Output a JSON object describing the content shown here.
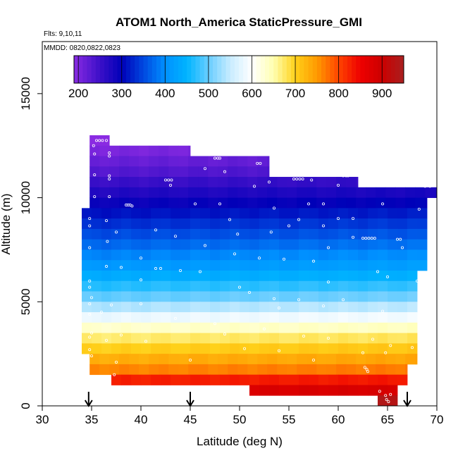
{
  "chart_data": {
    "type": "heatmap",
    "title": "ATOM1 North_America StaticPressure_GMI",
    "flights_label": "Flts: 9,10,11",
    "dates_label": "MMDD: 0820,0822,0823",
    "xlabel": "Latitude (deg N)",
    "ylabel": "Altitude (m)",
    "xlim": [
      30,
      70
    ],
    "ylim": [
      0,
      17500
    ],
    "x_ticks": [
      "30",
      "35",
      "40",
      "45",
      "50",
      "55",
      "60",
      "65",
      "70"
    ],
    "y_ticks": [
      "0",
      "5000",
      "10000",
      "15000"
    ],
    "colorbar": {
      "min": 190,
      "max": 950,
      "ticks": [
        "200",
        "300",
        "400",
        "500",
        "600",
        "700",
        "800",
        "900"
      ],
      "stops": [
        {
          "v": 190,
          "color": "#8a2be2"
        },
        {
          "v": 250,
          "color": "#3b0fc8"
        },
        {
          "v": 300,
          "color": "#0000b8"
        },
        {
          "v": 350,
          "color": "#0048e0"
        },
        {
          "v": 400,
          "color": "#0090ff"
        },
        {
          "v": 450,
          "color": "#00b4ff"
        },
        {
          "v": 500,
          "color": "#68cdff"
        },
        {
          "v": 550,
          "color": "#c8ecff"
        },
        {
          "v": 600,
          "color": "#ffffff"
        },
        {
          "v": 650,
          "color": "#ffffb0"
        },
        {
          "v": 700,
          "color": "#ffd11a"
        },
        {
          "v": 750,
          "color": "#ff9900"
        },
        {
          "v": 800,
          "color": "#ff4400"
        },
        {
          "v": 850,
          "color": "#ee0000"
        },
        {
          "v": 900,
          "color": "#cc0000"
        },
        {
          "v": 950,
          "color": "#a82020"
        }
      ]
    },
    "rows": [
      {
        "alt0": 12500,
        "alt1": 13000,
        "lat0": 34.8,
        "lat1": 36.8,
        "value": 190
      },
      {
        "alt0": 12000,
        "alt1": 12500,
        "lat0": 34.8,
        "lat1": 45.0,
        "value": 205
      },
      {
        "alt0": 11500,
        "alt1": 12000,
        "lat0": 34.8,
        "lat1": 53.0,
        "value": 220
      },
      {
        "alt0": 11000,
        "alt1": 11500,
        "lat0": 34.8,
        "lat1": 53.0,
        "value": 235
      },
      {
        "alt0": 10500,
        "alt1": 11000,
        "lat0": 34.8,
        "lat1": 62.0,
        "value": 255
      },
      {
        "alt0": 10000,
        "alt1": 10500,
        "lat0": 34.8,
        "lat1": 70.0,
        "value": 275
      },
      {
        "alt0": 9500,
        "alt1": 10000,
        "lat0": 34.8,
        "lat1": 69.0,
        "value": 295
      },
      {
        "alt0": 9000,
        "alt1": 9500,
        "lat0": 34.0,
        "lat1": 69.0,
        "value": 315
      },
      {
        "alt0": 8500,
        "alt1": 9000,
        "lat0": 34.0,
        "lat1": 69.0,
        "value": 335
      },
      {
        "alt0": 8000,
        "alt1": 8500,
        "lat0": 34.0,
        "lat1": 69.0,
        "value": 355
      },
      {
        "alt0": 7500,
        "alt1": 8000,
        "lat0": 34.0,
        "lat1": 69.0,
        "value": 375
      },
      {
        "alt0": 7000,
        "alt1": 7500,
        "lat0": 34.0,
        "lat1": 69.0,
        "value": 395
      },
      {
        "alt0": 6500,
        "alt1": 7000,
        "lat0": 34.0,
        "lat1": 69.0,
        "value": 415
      },
      {
        "alt0": 6000,
        "alt1": 6500,
        "lat0": 34.0,
        "lat1": 68.0,
        "value": 440
      },
      {
        "alt0": 5500,
        "alt1": 6000,
        "lat0": 34.0,
        "lat1": 68.0,
        "value": 470
      },
      {
        "alt0": 5000,
        "alt1": 5500,
        "lat0": 34.0,
        "lat1": 68.0,
        "value": 500
      },
      {
        "alt0": 4500,
        "alt1": 5000,
        "lat0": 34.0,
        "lat1": 68.0,
        "value": 540
      },
      {
        "alt0": 4000,
        "alt1": 4500,
        "lat0": 34.0,
        "lat1": 68.0,
        "value": 585
      },
      {
        "alt0": 3500,
        "alt1": 4000,
        "lat0": 34.0,
        "lat1": 68.0,
        "value": 635
      },
      {
        "alt0": 3000,
        "alt1": 3500,
        "lat0": 34.0,
        "lat1": 68.0,
        "value": 675
      },
      {
        "alt0": 2500,
        "alt1": 3000,
        "lat0": 34.0,
        "lat1": 68.0,
        "value": 705
      },
      {
        "alt0": 2000,
        "alt1": 2500,
        "lat0": 34.8,
        "lat1": 68.0,
        "value": 735
      },
      {
        "alt0": 1500,
        "alt1": 2000,
        "lat0": 34.8,
        "lat1": 67.0,
        "value": 765
      },
      {
        "alt0": 1000,
        "alt1": 1500,
        "lat0": 37.0,
        "lat1": 67.0,
        "value": 830
      },
      {
        "alt0": 500,
        "alt1": 1000,
        "lat0": 51.0,
        "lat1": 66.0,
        "value": 880
      },
      {
        "alt0": 0,
        "alt1": 500,
        "lat0": 64.0,
        "lat1": 66.0,
        "value": 930
      }
    ],
    "points": [
      [
        35.5,
        12750
      ],
      [
        35.8,
        12750
      ],
      [
        36.1,
        12750
      ],
      [
        36.5,
        12750
      ],
      [
        35.2,
        12500
      ],
      [
        36.8,
        12150
      ],
      [
        36.8,
        12000
      ],
      [
        35.3,
        12100
      ],
      [
        47.5,
        11900
      ],
      [
        47.8,
        11900
      ],
      [
        48.0,
        11900
      ],
      [
        51.8,
        11650
      ],
      [
        52.1,
        11650
      ],
      [
        46.5,
        11400
      ],
      [
        48.5,
        11250
      ],
      [
        35.3,
        11100
      ],
      [
        36.8,
        11050
      ],
      [
        36.8,
        10900
      ],
      [
        42.5,
        10850
      ],
      [
        42.8,
        10850
      ],
      [
        43.1,
        10850
      ],
      [
        43.0,
        10600
      ],
      [
        53.0,
        10750
      ],
      [
        51.5,
        10550
      ],
      [
        55.5,
        10900
      ],
      [
        55.8,
        10900
      ],
      [
        56.1,
        10900
      ],
      [
        56.4,
        10900
      ],
      [
        57.3,
        10850
      ],
      [
        60.5,
        11050
      ],
      [
        60.8,
        11050
      ],
      [
        61.0,
        11050
      ],
      [
        60.0,
        10600
      ],
      [
        62.5,
        10650
      ],
      [
        68.8,
        10550
      ],
      [
        69.3,
        10550
      ],
      [
        35.3,
        10050
      ],
      [
        36.8,
        10050
      ],
      [
        38.5,
        9650
      ],
      [
        38.7,
        9650
      ],
      [
        38.9,
        9650
      ],
      [
        39.1,
        9600
      ],
      [
        45.5,
        9700
      ],
      [
        48.0,
        9700
      ],
      [
        53.5,
        9500
      ],
      [
        57.0,
        9700
      ],
      [
        58.5,
        9700
      ],
      [
        64.5,
        9700
      ],
      [
        68.2,
        9450
      ],
      [
        34.8,
        9000
      ],
      [
        36.5,
        8900
      ],
      [
        49.0,
        8950
      ],
      [
        56.0,
        8950
      ],
      [
        60.0,
        9000
      ],
      [
        61.5,
        9000
      ],
      [
        34.8,
        8650
      ],
      [
        55.0,
        8650
      ],
      [
        58.5,
        8650
      ],
      [
        41.5,
        8450
      ],
      [
        37.5,
        8350
      ],
      [
        53.2,
        8350
      ],
      [
        43.5,
        8150
      ],
      [
        49.8,
        8250
      ],
      [
        61.5,
        8100
      ],
      [
        62.5,
        8050
      ],
      [
        62.8,
        8050
      ],
      [
        63.1,
        8050
      ],
      [
        63.4,
        8050
      ],
      [
        63.7,
        8050
      ],
      [
        66.0,
        8000
      ],
      [
        66.3,
        8000
      ],
      [
        34.8,
        7600
      ],
      [
        36.6,
        7900
      ],
      [
        46.5,
        7700
      ],
      [
        59.0,
        7600
      ],
      [
        66.5,
        7600
      ],
      [
        49.5,
        7300
      ],
      [
        52.0,
        7100
      ],
      [
        54.5,
        7050
      ],
      [
        57.5,
        6950
      ],
      [
        40.0,
        7100
      ],
      [
        36.5,
        6700
      ],
      [
        38.0,
        6650
      ],
      [
        41.5,
        6600
      ],
      [
        42.0,
        6600
      ],
      [
        44.0,
        6500
      ],
      [
        46.0,
        6450
      ],
      [
        59.0,
        5950
      ],
      [
        40.0,
        6050
      ],
      [
        64.0,
        6450
      ],
      [
        65.0,
        6200
      ],
      [
        68.0,
        6000
      ],
      [
        34.8,
        6000
      ],
      [
        34.8,
        5700
      ],
      [
        50.0,
        5700
      ],
      [
        51.0,
        5450
      ],
      [
        35.0,
        5200
      ],
      [
        53.5,
        5150
      ],
      [
        56.0,
        5100
      ],
      [
        60.5,
        5100
      ],
      [
        34.8,
        4900
      ],
      [
        37.0,
        4850
      ],
      [
        40.0,
        4900
      ],
      [
        54.0,
        4700
      ],
      [
        58.5,
        4800
      ],
      [
        64.5,
        4550
      ],
      [
        34.8,
        4400
      ],
      [
        36.0,
        4500
      ],
      [
        43.5,
        4200
      ],
      [
        47.5,
        3950
      ],
      [
        52.5,
        3700
      ],
      [
        35.0,
        3500
      ],
      [
        38.0,
        3400
      ],
      [
        48.5,
        3450
      ],
      [
        56.5,
        3350
      ],
      [
        59.0,
        3250
      ],
      [
        63.5,
        3200
      ],
      [
        34.8,
        3300
      ],
      [
        36.5,
        3150
      ],
      [
        40.5,
        3100
      ],
      [
        34.8,
        2700
      ],
      [
        35.0,
        2400
      ],
      [
        50.5,
        2750
      ],
      [
        54.0,
        2650
      ],
      [
        62.5,
        2550
      ],
      [
        64.8,
        2550
      ],
      [
        65.3,
        2900
      ],
      [
        67.5,
        2800
      ],
      [
        37.5,
        2100
      ],
      [
        45.0,
        2200
      ],
      [
        57.5,
        2200
      ],
      [
        62.7,
        1850
      ],
      [
        62.9,
        1750
      ],
      [
        63.0,
        1650
      ],
      [
        37.3,
        1500
      ],
      [
        64.2,
        700
      ],
      [
        64.8,
        500
      ],
      [
        64.9,
        300
      ],
      [
        65.1,
        200
      ],
      [
        65.3,
        550
      ]
    ],
    "arrows_lat": [
      34.7,
      45.0,
      67.0
    ]
  }
}
